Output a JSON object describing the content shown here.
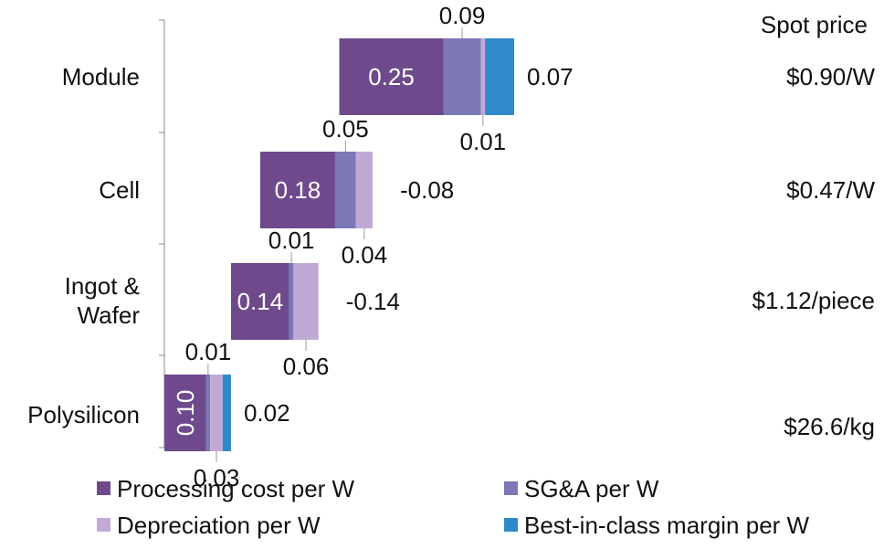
{
  "chart_data": {
    "type": "bar",
    "orientation": "horizontal",
    "stacked": true,
    "waterfall": true,
    "categories": [
      "Module",
      "Cell",
      "Ingot & Wafer",
      "Polysilicon"
    ],
    "category_lines": [
      [
        "Module"
      ],
      [
        "Cell"
      ],
      [
        "Ingot &",
        "Wafer"
      ],
      [
        "Polysilicon"
      ]
    ],
    "series": [
      {
        "name": "Processing cost per W",
        "color": "#6e4a8c",
        "values": [
          0.25,
          0.18,
          0.14,
          0.1
        ]
      },
      {
        "name": "SG&A per W",
        "color": "#7b78b5",
        "values": [
          0.09,
          0.05,
          0.01,
          0.01
        ]
      },
      {
        "name": "Depreciation per W",
        "color": "#c1a9d5",
        "values": [
          0.01,
          0.04,
          0.06,
          0.03
        ]
      },
      {
        "name": "Best-in-class margin per W",
        "color": "#2f8ac9",
        "values": [
          0.07,
          -0.08,
          -0.14,
          0.02
        ]
      }
    ],
    "labels": {
      "processing": [
        "0.25",
        "0.18",
        "0.14",
        "0.10"
      ],
      "sga": [
        "0.09",
        "0.05",
        "0.01",
        "0.01"
      ],
      "depreciation": [
        "0.01",
        "0.04",
        "0.06",
        "0.03"
      ],
      "margin": [
        "0.07",
        "-0.08",
        "-0.14",
        "0.02"
      ]
    },
    "spot_price_header": "Spot price",
    "spot_prices": [
      "$0.90/W",
      "$0.47/W",
      "$1.12/piece",
      "$26.6/kg"
    ],
    "legend": [
      {
        "label": "Processing cost per W",
        "color": "#6e4a8c"
      },
      {
        "label": "SG&A per W",
        "color": "#7b78b5"
      },
      {
        "label": "Depreciation per W",
        "color": "#c1a9d5"
      },
      {
        "label": "Best-in-class margin per W",
        "color": "#2f8ac9"
      }
    ],
    "legend_position": "bottom",
    "grid": false
  }
}
